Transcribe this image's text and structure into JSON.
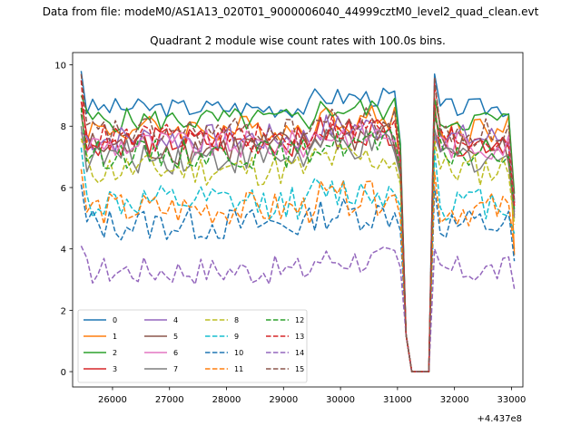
{
  "figure": {
    "suptitle": "Data from file: modeM0/AS1A13_020T01_9000006040_44999cztM0_level2_quad_clean.evt",
    "offset_label": "+4.437e8"
  },
  "chart_data": {
    "type": "line",
    "title": "Quadrant 2 module wise count rates with 100.0s bins.",
    "xlabel": "",
    "ylabel": "",
    "x_offset": 443700000,
    "xlim": [
      25300,
      33200
    ],
    "ylim": [
      -0.5,
      10.4
    ],
    "xticks": [
      26000,
      27000,
      28000,
      29000,
      30000,
      31000,
      32000,
      33000
    ],
    "xtick_labels": [
      "26000",
      "27000",
      "28000",
      "29000",
      "30000",
      "31000",
      "32000",
      "33000"
    ],
    "yticks": [
      0,
      2,
      4,
      6,
      8,
      10
    ],
    "ytick_labels": [
      "0",
      "2",
      "4",
      "6",
      "8",
      "10"
    ],
    "grid": false,
    "legend_position": "lower-left",
    "legend_columns": 4,
    "x_start": 25450,
    "x_step": 100,
    "gap_indices": [
      57,
      58,
      59,
      60,
      61
    ],
    "gap_values": [
      1.2,
      0.0,
      0.0,
      0.0,
      0.0
    ],
    "series": [
      {
        "name": "0",
        "color": "#1f77b4",
        "dash": "solid",
        "level": 8.6,
        "amp": 0.2,
        "first": 9.8,
        "end": 5.5
      },
      {
        "name": "1",
        "color": "#ff7f0e",
        "dash": "solid",
        "level": 7.9,
        "amp": 0.3,
        "first": 7.5,
        "end": 3.8
      },
      {
        "name": "2",
        "color": "#2ca02c",
        "dash": "solid",
        "level": 8.2,
        "amp": 0.25,
        "first": 9.0,
        "end": 5.8
      },
      {
        "name": "3",
        "color": "#d62728",
        "dash": "solid",
        "level": 7.5,
        "amp": 0.3,
        "first": 8.8,
        "end": 5.5
      },
      {
        "name": "4",
        "color": "#9467bd",
        "dash": "solid",
        "level": 7.6,
        "amp": 0.3,
        "first": 7.8,
        "end": 5.2
      },
      {
        "name": "5",
        "color": "#8c564b",
        "dash": "solid",
        "level": 7.3,
        "amp": 0.35,
        "first": 8.4,
        "end": 5.1
      },
      {
        "name": "6",
        "color": "#e377c2",
        "dash": "solid",
        "level": 7.4,
        "amp": 0.3,
        "first": 7.8,
        "end": 5.4
      },
      {
        "name": "7",
        "color": "#7f7f7f",
        "dash": "solid",
        "level": 7.0,
        "amp": 0.35,
        "first": 8.0,
        "end": 5.0
      },
      {
        "name": "8",
        "color": "#bcbd22",
        "dash": "dashed",
        "level": 6.6,
        "amp": 0.35,
        "first": 7.6,
        "end": 4.8
      },
      {
        "name": "9",
        "color": "#17becf",
        "dash": "dashed",
        "level": 5.5,
        "amp": 0.35,
        "first": 7.3,
        "end": 4.5
      },
      {
        "name": "10",
        "color": "#1f77b4",
        "dash": "dashed",
        "level": 4.8,
        "amp": 0.35,
        "first": 6.1,
        "end": 3.6
      },
      {
        "name": "11",
        "color": "#ff7f0e",
        "dash": "dashed",
        "level": 5.3,
        "amp": 0.35,
        "first": 6.6,
        "end": 4.0
      },
      {
        "name": "12",
        "color": "#2ca02c",
        "dash": "dashed",
        "level": 7.1,
        "amp": 0.3,
        "first": 8.6,
        "end": 5.3
      },
      {
        "name": "13",
        "color": "#d62728",
        "dash": "dashed",
        "level": 7.6,
        "amp": 0.3,
        "first": 9.5,
        "end": 5.4
      },
      {
        "name": "14",
        "color": "#9467bd",
        "dash": "dashed",
        "level": 3.3,
        "amp": 0.3,
        "first": 4.1,
        "end": 2.7
      },
      {
        "name": "15",
        "color": "#8c564b",
        "dash": "dashed",
        "level": 7.8,
        "amp": 0.3,
        "first": 9.7,
        "end": 5.6
      }
    ]
  }
}
